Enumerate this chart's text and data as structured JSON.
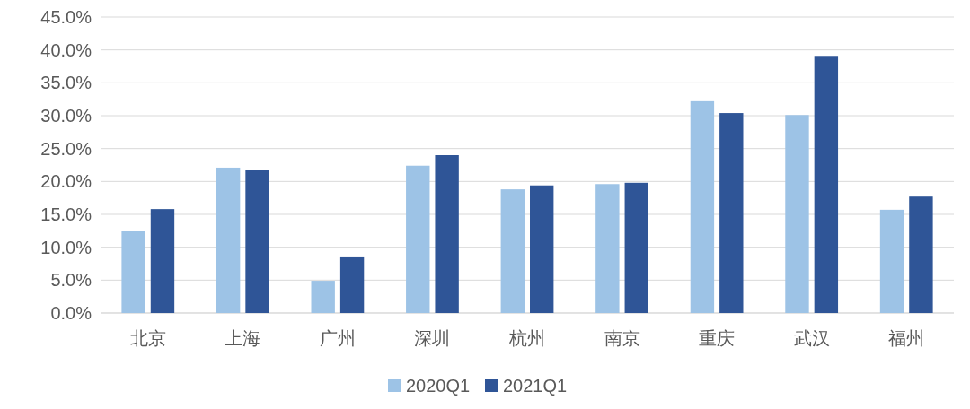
{
  "chart_data": {
    "type": "bar",
    "categories": [
      "北京",
      "上海",
      "广州",
      "深圳",
      "杭州",
      "南京",
      "重庆",
      "武汉",
      "福州"
    ],
    "series": [
      {
        "name": "2020Q1",
        "color": "#9dc3e6",
        "values": [
          12.5,
          22.1,
          4.9,
          22.4,
          18.8,
          19.6,
          32.2,
          30.1,
          15.7
        ]
      },
      {
        "name": "2021Q1",
        "color": "#2f5597",
        "values": [
          15.8,
          21.8,
          8.6,
          24.0,
          19.4,
          19.8,
          30.4,
          39.1,
          17.7
        ]
      }
    ],
    "ylim": [
      0,
      45
    ],
    "yticks": [
      {
        "value": 0,
        "label": "0.0%"
      },
      {
        "value": 5,
        "label": "5.0%"
      },
      {
        "value": 10,
        "label": "10.0%"
      },
      {
        "value": 15,
        "label": "15.0%"
      },
      {
        "value": 20,
        "label": "20.0%"
      },
      {
        "value": 25,
        "label": "25.0%"
      },
      {
        "value": 30,
        "label": "30.0%"
      },
      {
        "value": 35,
        "label": "35.0%"
      },
      {
        "value": 40,
        "label": "40.0%"
      },
      {
        "value": 45,
        "label": "45.0%"
      }
    ],
    "grid": "y",
    "legend": "bottom"
  }
}
